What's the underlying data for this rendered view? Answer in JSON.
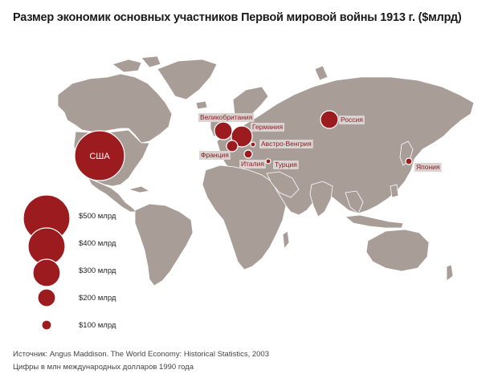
{
  "title": "Размер экономик основных участников Первой мировой войны 1913 г. ($млрд)",
  "colors": {
    "land": "#a99d98",
    "border": "#ffffff",
    "bubble": "#9b1b1e",
    "bubble_stroke": "#ffffff",
    "label_bg": "#d9d3d1",
    "label_text": "#8a1a1d"
  },
  "countries": [
    {
      "name": "США",
      "style": "inside"
    },
    {
      "name": "Великобритания",
      "style": "box"
    },
    {
      "name": "Германия",
      "style": "box"
    },
    {
      "name": "Франция",
      "style": "box"
    },
    {
      "name": "Австро-Венгрия",
      "style": "box"
    },
    {
      "name": "Италия",
      "style": "box"
    },
    {
      "name": "Турция",
      "style": "box"
    },
    {
      "name": "Россия",
      "style": "box"
    },
    {
      "name": "Япония",
      "style": "box"
    }
  ],
  "legend": [
    {
      "label": "$500 млрд"
    },
    {
      "label": "$400 млрд"
    },
    {
      "label": "$300 млрд"
    },
    {
      "label": "$200 млрд"
    },
    {
      "label": "$100 млрд"
    }
  ],
  "footer": {
    "source": "Источник: Angus Maddison. The World Economy: Historical Statistics, 2003",
    "note": "Цифры в млн международных долларов 1990 года"
  }
}
